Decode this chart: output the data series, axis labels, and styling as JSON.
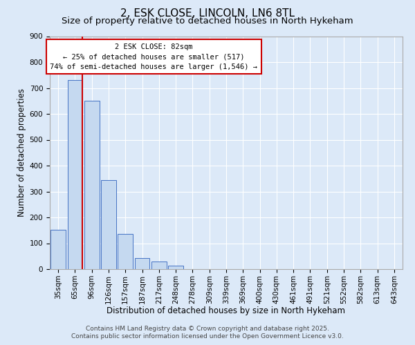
{
  "title": "2, ESK CLOSE, LINCOLN, LN6 8TL",
  "subtitle": "Size of property relative to detached houses in North Hykeham",
  "xlabel": "Distribution of detached houses by size in North Hykeham",
  "ylabel": "Number of detached properties",
  "bar_labels": [
    "35sqm",
    "65sqm",
    "96sqm",
    "126sqm",
    "157sqm",
    "187sqm",
    "217sqm",
    "248sqm",
    "278sqm",
    "309sqm",
    "339sqm",
    "369sqm",
    "400sqm",
    "430sqm",
    "461sqm",
    "491sqm",
    "521sqm",
    "552sqm",
    "582sqm",
    "613sqm",
    "643sqm"
  ],
  "bar_values": [
    152,
    730,
    650,
    343,
    137,
    43,
    30,
    14,
    0,
    0,
    0,
    0,
    0,
    0,
    0,
    0,
    0,
    0,
    0,
    0,
    0
  ],
  "bar_color": "#c5d9f0",
  "bar_edgecolor": "#4472c4",
  "ylim": [
    0,
    900
  ],
  "yticks": [
    0,
    100,
    200,
    300,
    400,
    500,
    600,
    700,
    800,
    900
  ],
  "vline_color": "#cc0000",
  "annotation_title": "2 ESK CLOSE: 82sqm",
  "annotation_line1": "← 25% of detached houses are smaller (517)",
  "annotation_line2": "74% of semi-detached houses are larger (1,546) →",
  "annotation_box_facecolor": "#ffffff",
  "annotation_box_edgecolor": "#cc0000",
  "footer1": "Contains HM Land Registry data © Crown copyright and database right 2025.",
  "footer2": "Contains public sector information licensed under the Open Government Licence v3.0.",
  "background_color": "#dce9f8",
  "plot_background_color": "#dce9f8",
  "grid_color": "#ffffff",
  "title_fontsize": 11,
  "subtitle_fontsize": 9.5,
  "axis_label_fontsize": 8.5,
  "tick_fontsize": 7.5,
  "annotation_fontsize": 7.5,
  "footer_fontsize": 6.5
}
